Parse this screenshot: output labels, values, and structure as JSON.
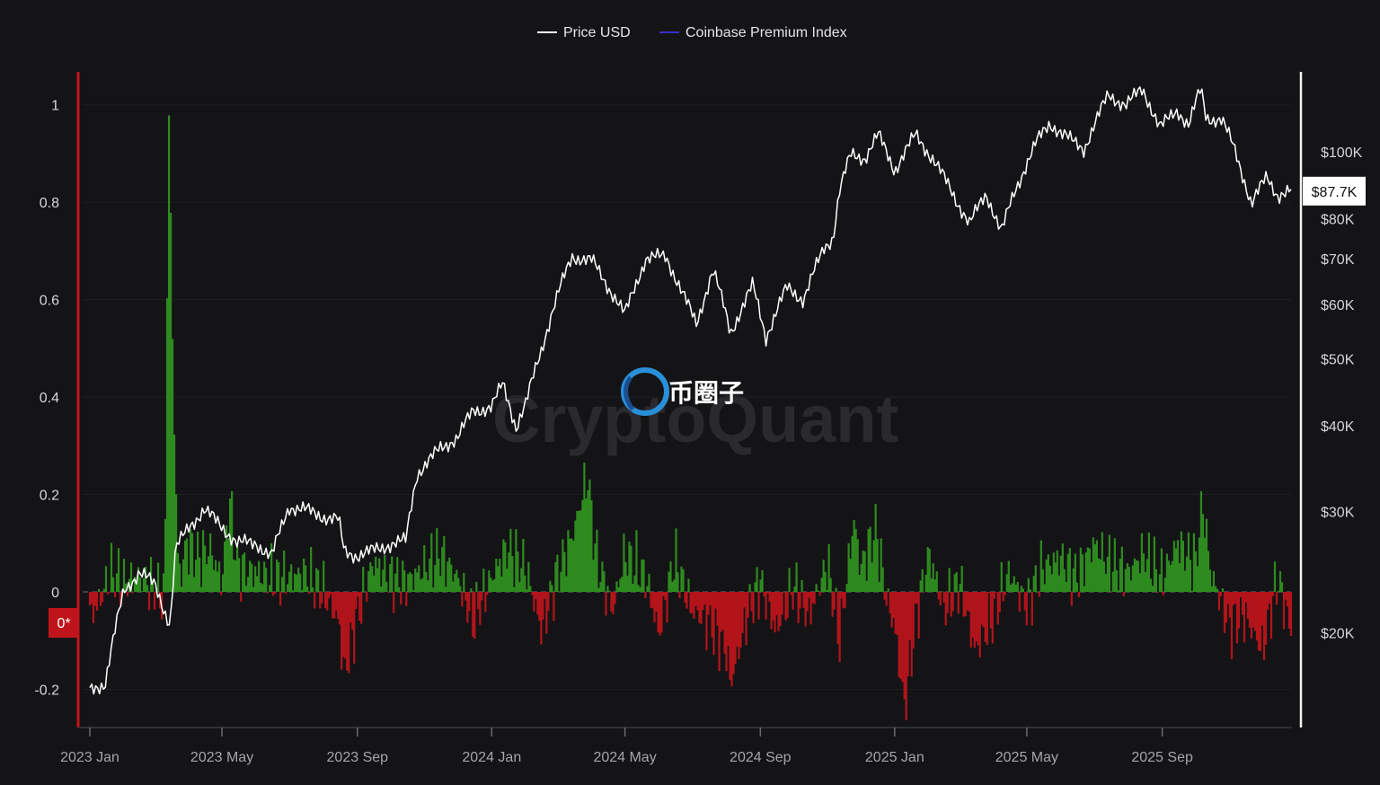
{
  "chart_data": {
    "type": "line",
    "watermark": "CryptoQuant",
    "brand_logo": "币圈子",
    "legend": [
      {
        "name": "Price USD",
        "color": "#ffffff"
      },
      {
        "name": "Coinbase Premium Index",
        "color": "#3b2fc9"
      }
    ],
    "x_ticks": [
      "2023 Jan",
      "2023 May",
      "2023 Sep",
      "2024 Jan",
      "2024 May",
      "2024 Sep",
      "2025 Jan",
      "2025 May",
      "2025 Sep"
    ],
    "x_range": [
      "2023-01-01",
      "2025-12-27"
    ],
    "left_axis": {
      "ticks": [
        "1",
        "0.8",
        "0.6",
        "0.4",
        "0.2",
        "0",
        "-0.2"
      ],
      "range": [
        -0.26,
        1.04
      ],
      "zero_badge": "0*"
    },
    "right_axis": {
      "scale": "log",
      "ticks": [
        "$100K",
        "$80K",
        "$70K",
        "$60K",
        "$50K",
        "$40K",
        "$30K",
        "$20K"
      ],
      "range": [
        15000,
        125000
      ],
      "current_badge": "$87.7K"
    },
    "positive_color": "#2e8b1f",
    "negative_color": "#b3141b",
    "price_series": {
      "name": "Price USD",
      "x": [
        "2023-01-01",
        "2023-01-15",
        "2023-02-01",
        "2023-02-15",
        "2023-03-01",
        "2023-03-10",
        "2023-03-15",
        "2023-03-20",
        "2023-04-01",
        "2023-04-15",
        "2023-05-01",
        "2023-05-15",
        "2023-06-01",
        "2023-06-15",
        "2023-07-01",
        "2023-07-15",
        "2023-08-01",
        "2023-08-15",
        "2023-08-20",
        "2023-09-01",
        "2023-09-15",
        "2023-10-01",
        "2023-10-15",
        "2023-10-25",
        "2023-11-01",
        "2023-11-15",
        "2023-12-01",
        "2023-12-15",
        "2024-01-01",
        "2024-01-11",
        "2024-01-23",
        "2024-02-01",
        "2024-02-15",
        "2024-03-01",
        "2024-03-14",
        "2024-04-01",
        "2024-04-15",
        "2024-05-01",
        "2024-05-20",
        "2024-06-07",
        "2024-06-25",
        "2024-07-05",
        "2024-07-20",
        "2024-08-05",
        "2024-08-25",
        "2024-09-06",
        "2024-09-25",
        "2024-10-10",
        "2024-10-29",
        "2024-11-06",
        "2024-11-12",
        "2024-11-22",
        "2024-12-05",
        "2024-12-17",
        "2025-01-01",
        "2025-01-20",
        "2025-02-05",
        "2025-02-28",
        "2025-03-10",
        "2025-03-25",
        "2025-04-08",
        "2025-04-20",
        "2025-05-10",
        "2025-05-22",
        "2025-06-10",
        "2025-06-22",
        "2025-07-14",
        "2025-07-30",
        "2025-08-14",
        "2025-08-30",
        "2025-09-15",
        "2025-09-25",
        "2025-10-06",
        "2025-10-11",
        "2025-10-25",
        "2025-11-05",
        "2025-11-21",
        "2025-12-05",
        "2025-12-15",
        "2025-12-27"
      ],
      "values": [
        16500,
        16900,
        23000,
        24500,
        23500,
        21500,
        20500,
        26500,
        28500,
        30200,
        28500,
        27000,
        27000,
        25800,
        30500,
        30200,
        29500,
        29200,
        26200,
        25900,
        26300,
        26900,
        27200,
        34000,
        35000,
        37000,
        38500,
        42000,
        42600,
        46000,
        39800,
        43000,
        51500,
        62000,
        70500,
        69500,
        64000,
        58000,
        70000,
        70500,
        61000,
        56000,
        67500,
        54500,
        64000,
        53700,
        63500,
        61000,
        72500,
        75000,
        88000,
        99000,
        98000,
        106000,
        94000,
        106000,
        97500,
        84000,
        78500,
        87000,
        76500,
        87500,
        103500,
        110000,
        104000,
        101000,
        121000,
        117000,
        123500,
        108500,
        115000,
        109500,
        123500,
        112000,
        111500,
        101500,
        84000,
        92000,
        86500,
        87700
      ]
    },
    "premium_series": {
      "name": "Coinbase Premium Index",
      "x": [
        "2023-01-01",
        "2023-01-10",
        "2023-01-20",
        "2023-02-01",
        "2023-02-15",
        "2023-03-01",
        "2023-03-10",
        "2023-03-12",
        "2023-03-14",
        "2023-03-16",
        "2023-03-18",
        "2023-03-22",
        "2023-03-25",
        "2023-03-30",
        "2023-04-10",
        "2023-04-20",
        "2023-05-01",
        "2023-05-08",
        "2023-05-15",
        "2023-06-01",
        "2023-06-15",
        "2023-07-01",
        "2023-07-15",
        "2023-08-01",
        "2023-08-15",
        "2023-08-20",
        "2023-09-01",
        "2023-09-15",
        "2023-10-01",
        "2023-10-15",
        "2023-11-01",
        "2023-11-15",
        "2023-12-01",
        "2023-12-15",
        "2024-01-01",
        "2024-01-15",
        "2024-02-01",
        "2024-02-15",
        "2024-03-01",
        "2024-03-15",
        "2024-03-28",
        "2024-04-05",
        "2024-04-20",
        "2024-05-01",
        "2024-05-20",
        "2024-06-01",
        "2024-06-15",
        "2024-07-01",
        "2024-07-15",
        "2024-08-01",
        "2024-08-05",
        "2024-08-20",
        "2024-09-01",
        "2024-09-15",
        "2024-10-01",
        "2024-10-15",
        "2024-11-01",
        "2024-11-12",
        "2024-11-25",
        "2024-12-01",
        "2024-12-15",
        "2024-12-25",
        "2025-01-01",
        "2025-01-10",
        "2025-01-20",
        "2025-02-01",
        "2025-02-15",
        "2025-03-01",
        "2025-03-15",
        "2025-04-01",
        "2025-04-15",
        "2025-05-01",
        "2025-05-15",
        "2025-06-01",
        "2025-06-15",
        "2025-07-01",
        "2025-07-15",
        "2025-08-01",
        "2025-08-15",
        "2025-09-01",
        "2025-09-15",
        "2025-10-01",
        "2025-10-08",
        "2025-10-15",
        "2025-11-01",
        "2025-11-15",
        "2025-12-01",
        "2025-12-15",
        "2025-12-27"
      ],
      "values": [
        -0.05,
        -0.02,
        0.04,
        0.02,
        0.03,
        0.01,
        -0.02,
        0.55,
        1.01,
        0.7,
        0.38,
        0.08,
        0.04,
        0.1,
        0.07,
        0.09,
        0.02,
        0.19,
        0.05,
        0.04,
        0.03,
        0.03,
        0.04,
        0.0,
        -0.06,
        -0.17,
        -0.05,
        0.06,
        0.03,
        0.02,
        0.05,
        0.08,
        0.03,
        -0.06,
        0.03,
        0.09,
        0.05,
        -0.08,
        0.04,
        0.12,
        0.24,
        0.07,
        -0.04,
        0.08,
        0.03,
        -0.09,
        0.07,
        -0.04,
        -0.06,
        -0.12,
        -0.19,
        -0.05,
        0.02,
        -0.08,
        0.01,
        -0.05,
        0.06,
        -0.1,
        0.15,
        0.05,
        0.13,
        -0.02,
        -0.07,
        -0.24,
        -0.06,
        0.08,
        -0.04,
        0.02,
        -0.12,
        -0.05,
        0.04,
        -0.03,
        0.05,
        0.07,
        0.03,
        0.1,
        0.06,
        0.04,
        0.08,
        0.03,
        0.1,
        0.06,
        0.18,
        0.04,
        -0.07,
        -0.05,
        -0.12,
        0.03,
        -0.08
      ]
    }
  }
}
